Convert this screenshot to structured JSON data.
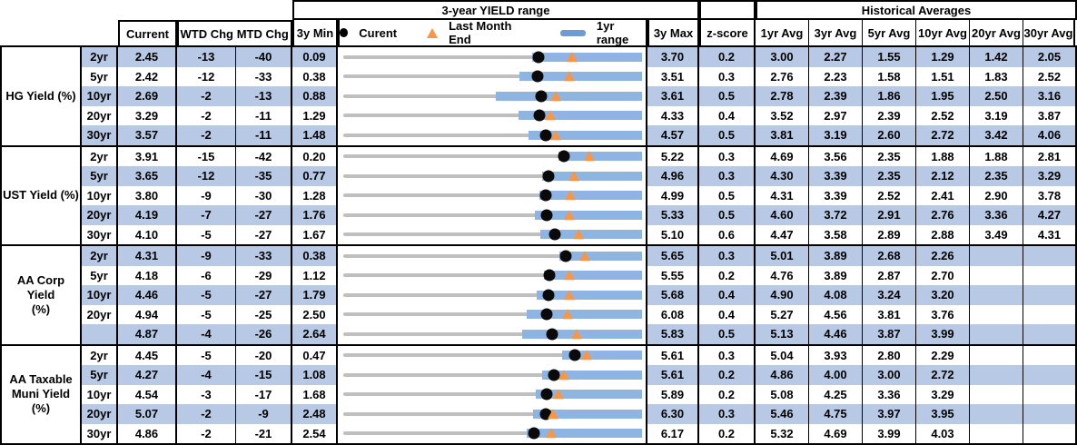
{
  "header": {
    "chart_group_title": "3-year YIELD range",
    "hist_group_title": "Historical Averages",
    "col_current": "Current",
    "col_wtd": "WTD Chg",
    "col_mtd": "MTD Chg",
    "col_3y_min": "3y Min",
    "col_3y_max": "3y Max",
    "col_zscore": "z-score",
    "avg_cols": [
      "1yr Avg",
      "3yr Avg",
      "5yr Avg",
      "10yr Avg",
      "20yr Avg",
      "30yr Avg"
    ],
    "legend": {
      "current": "Curent",
      "last_month_end": "Last Month End",
      "range_1yr": "1yr range"
    }
  },
  "colors": {
    "row_band": "#b7c9e5",
    "range_bar": "#8eb4e3",
    "track": "#bfbfbf",
    "current_marker": "#000000",
    "last_month_end_marker": "#f79646",
    "legend_dash": "#6d9bd4",
    "border": "#000000"
  },
  "groups": [
    {
      "label": "HG Yield (%)",
      "rows": [
        {
          "tenor": "2yr",
          "current": "2.45",
          "wtd": "-13",
          "mtd": "-40",
          "min": "0.09",
          "max": "3.70",
          "z": "0.2",
          "yr1_low": 2.37,
          "avgs": [
            "3.00",
            "2.27",
            "1.55",
            "1.29",
            "1.42",
            "2.05"
          ]
        },
        {
          "tenor": "5yr",
          "current": "2.42",
          "wtd": "-12",
          "mtd": "-33",
          "min": "0.38",
          "max": "3.51",
          "z": "0.3",
          "yr1_low": 2.23,
          "avgs": [
            "2.76",
            "2.23",
            "1.58",
            "1.51",
            "1.83",
            "2.52"
          ]
        },
        {
          "tenor": "10yr",
          "current": "2.69",
          "wtd": "-2",
          "mtd": "-13",
          "min": "0.88",
          "max": "3.61",
          "z": "0.5",
          "yr1_low": 2.27,
          "avgs": [
            "2.78",
            "2.39",
            "1.86",
            "1.95",
            "2.50",
            "3.16"
          ]
        },
        {
          "tenor": "20yr",
          "current": "3.29",
          "wtd": "-2",
          "mtd": "-11",
          "min": "1.29",
          "max": "4.33",
          "z": "0.4",
          "yr1_low": 3.07,
          "avgs": [
            "3.52",
            "2.97",
            "2.39",
            "2.52",
            "3.19",
            "3.87"
          ]
        },
        {
          "tenor": "30yr",
          "current": "3.57",
          "wtd": "-2",
          "mtd": "-11",
          "min": "1.48",
          "max": "4.57",
          "z": "0.5",
          "yr1_low": 3.4,
          "avgs": [
            "3.81",
            "3.19",
            "2.60",
            "2.72",
            "3.42",
            "4.06"
          ]
        }
      ]
    },
    {
      "label": "UST Yield (%)",
      "rows": [
        {
          "tenor": "2yr",
          "current": "3.91",
          "wtd": "-15",
          "mtd": "-42",
          "min": "0.20",
          "max": "5.22",
          "z": "0.3",
          "yr1_low": 3.81,
          "avgs": [
            "4.69",
            "3.56",
            "2.35",
            "1.88",
            "1.88",
            "2.81"
          ]
        },
        {
          "tenor": "5yr",
          "current": "3.65",
          "wtd": "-12",
          "mtd": "-35",
          "min": "0.77",
          "max": "4.96",
          "z": "0.3",
          "yr1_low": 3.56,
          "avgs": [
            "4.30",
            "3.39",
            "2.35",
            "2.12",
            "2.35",
            "3.29"
          ]
        },
        {
          "tenor": "10yr",
          "current": "3.80",
          "wtd": "-9",
          "mtd": "-30",
          "min": "1.28",
          "max": "4.99",
          "z": "0.5",
          "yr1_low": 3.72,
          "avgs": [
            "4.31",
            "3.39",
            "2.52",
            "2.41",
            "2.90",
            "3.78"
          ]
        },
        {
          "tenor": "20yr",
          "current": "4.19",
          "wtd": "-7",
          "mtd": "-27",
          "min": "1.76",
          "max": "5.33",
          "z": "0.5",
          "yr1_low": 4.05,
          "avgs": [
            "4.60",
            "3.72",
            "2.91",
            "2.76",
            "3.36",
            "4.27"
          ]
        },
        {
          "tenor": "30yr",
          "current": "4.10",
          "wtd": "-5",
          "mtd": "-27",
          "min": "1.67",
          "max": "5.10",
          "z": "0.6",
          "yr1_low": 3.93,
          "avgs": [
            "4.47",
            "3.58",
            "2.89",
            "2.88",
            "3.49",
            "4.31"
          ]
        }
      ]
    },
    {
      "label": "AA Corp Yield\n(%)",
      "rows": [
        {
          "tenor": "2yr",
          "current": "4.31",
          "wtd": "-9",
          "mtd": "-33",
          "min": "0.38",
          "max": "5.65",
          "z": "0.3",
          "yr1_low": 4.2,
          "avgs": [
            "5.01",
            "3.89",
            "2.68",
            "2.26",
            "",
            ""
          ]
        },
        {
          "tenor": "5yr",
          "current": "4.18",
          "wtd": "-6",
          "mtd": "-29",
          "min": "1.12",
          "max": "5.55",
          "z": "0.2",
          "yr1_low": 4.1,
          "avgs": [
            "4.76",
            "3.89",
            "2.87",
            "2.70",
            "",
            ""
          ]
        },
        {
          "tenor": "10yr",
          "current": "4.46",
          "wtd": "-5",
          "mtd": "-27",
          "min": "1.79",
          "max": "5.68",
          "z": "0.4",
          "yr1_low": 4.31,
          "avgs": [
            "4.90",
            "4.08",
            "3.24",
            "3.20",
            "",
            ""
          ]
        },
        {
          "tenor": "20yr",
          "current": "4.94",
          "wtd": "-5",
          "mtd": "-25",
          "min": "2.50",
          "max": "6.08",
          "z": "0.4",
          "yr1_low": 4.7,
          "avgs": [
            "5.27",
            "4.56",
            "3.81",
            "3.76",
            "",
            ""
          ]
        },
        {
          "tenor": "",
          "current": "4.87",
          "wtd": "-4",
          "mtd": "-26",
          "min": "2.64",
          "max": "5.83",
          "z": "0.5",
          "yr1_low": 4.55,
          "avgs": [
            "5.13",
            "4.46",
            "3.87",
            "3.99",
            "",
            ""
          ]
        }
      ]
    },
    {
      "label": "AA Taxable\nMuni Yield\n(%)",
      "rows": [
        {
          "tenor": "2yr",
          "current": "4.45",
          "wtd": "-5",
          "mtd": "-20",
          "min": "0.47",
          "max": "5.61",
          "z": "0.3",
          "yr1_low": 4.24,
          "avgs": [
            "5.04",
            "3.93",
            "2.80",
            "2.29",
            "",
            ""
          ]
        },
        {
          "tenor": "5yr",
          "current": "4.27",
          "wtd": "-4",
          "mtd": "-15",
          "min": "1.08",
          "max": "5.61",
          "z": "0.2",
          "yr1_low": 4.09,
          "avgs": [
            "4.86",
            "4.00",
            "3.00",
            "2.72",
            "",
            ""
          ]
        },
        {
          "tenor": "10yr",
          "current": "4.54",
          "wtd": "-3",
          "mtd": "-17",
          "min": "1.68",
          "max": "5.89",
          "z": "0.2",
          "yr1_low": 4.39,
          "avgs": [
            "5.08",
            "4.25",
            "3.36",
            "3.29",
            "",
            ""
          ]
        },
        {
          "tenor": "20yr",
          "current": "5.07",
          "wtd": "-2",
          "mtd": "-9",
          "min": "2.48",
          "max": "6.30",
          "z": "0.3",
          "yr1_low": 4.91,
          "avgs": [
            "5.46",
            "4.75",
            "3.97",
            "3.95",
            "",
            ""
          ]
        },
        {
          "tenor": "30yr",
          "current": "4.86",
          "wtd": "-2",
          "mtd": "-21",
          "min": "2.54",
          "max": "6.17",
          "z": "0.2",
          "yr1_low": 4.77,
          "avgs": [
            "5.32",
            "4.69",
            "3.99",
            "4.03",
            "",
            ""
          ]
        }
      ]
    }
  ]
}
